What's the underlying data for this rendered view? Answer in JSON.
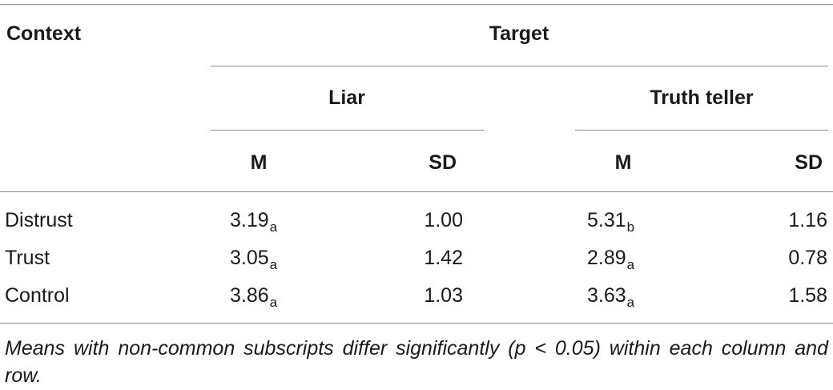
{
  "table": {
    "header": {
      "context": "Context",
      "target": "Target",
      "liar": "Liar",
      "truth_teller": "Truth teller",
      "m1": "M",
      "sd1": "SD",
      "m2": "M",
      "sd2": "SD"
    },
    "rows": [
      {
        "context": "Distrust",
        "liar_m": "3.19",
        "liar_m_sub": "a",
        "liar_sd": "1.00",
        "tt_m": "5.31",
        "tt_m_sub": "b",
        "tt_sd": "1.16"
      },
      {
        "context": "Trust",
        "liar_m": "3.05",
        "liar_m_sub": "a",
        "liar_sd": "1.42",
        "tt_m": "2.89",
        "tt_m_sub": "a",
        "tt_sd": "0.78"
      },
      {
        "context": "Control",
        "liar_m": "3.86",
        "liar_m_sub": "a",
        "liar_sd": "1.03",
        "tt_m": "3.63",
        "tt_m_sub": "a",
        "tt_sd": "1.58"
      }
    ],
    "footnote": "Means with non-common subscripts differ significantly (p < 0.05) within each column and row."
  }
}
